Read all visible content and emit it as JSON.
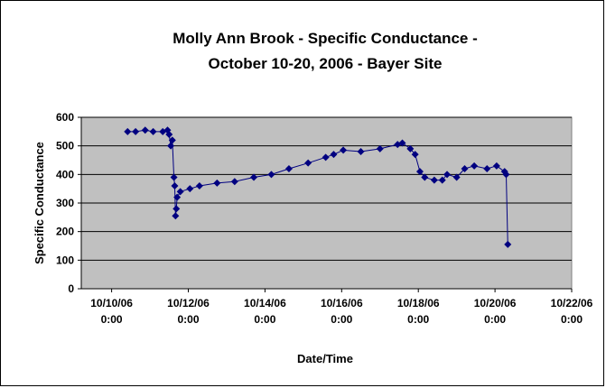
{
  "chart_data": {
    "type": "line",
    "title": [
      "Molly Ann Brook - Specific Conductance -",
      "October 10-20, 2006 - Bayer Site"
    ],
    "x_label": "Date/Time",
    "y_label": "Specific Conductance",
    "x": [
      "2006-10-10 10:00",
      "2006-10-10 15:00",
      "2006-10-10 21:00",
      "2006-10-11 02:00",
      "2006-10-11 08:00",
      "2006-10-11 11:00",
      "2006-10-11 12:00",
      "2006-10-11 13:00",
      "2006-10-11 14:00",
      "2006-10-11 15:00",
      "2006-10-11 15:30",
      "2006-10-11 16:00",
      "2006-10-11 16:30",
      "2006-10-11 17:00",
      "2006-10-11 19:00",
      "2006-10-12 01:00",
      "2006-10-12 07:00",
      "2006-10-12 18:00",
      "2006-10-13 05:00",
      "2006-10-13 17:00",
      "2006-10-14 04:00",
      "2006-10-14 15:00",
      "2006-10-15 03:00",
      "2006-10-15 14:00",
      "2006-10-15 19:00",
      "2006-10-16 01:00",
      "2006-10-16 12:00",
      "2006-10-17 00:00",
      "2006-10-17 11:00",
      "2006-10-17 14:00",
      "2006-10-17 19:00",
      "2006-10-17 22:00",
      "2006-10-18 01:00",
      "2006-10-18 04:00",
      "2006-10-18 10:00",
      "2006-10-18 15:00",
      "2006-10-18 18:00",
      "2006-10-19 00:00",
      "2006-10-19 05:00",
      "2006-10-19 11:00",
      "2006-10-19 19:00",
      "2006-10-20 01:00",
      "2006-10-20 06:00",
      "2006-10-20 07:00",
      "2006-10-20 08:00"
    ],
    "series": [
      {
        "name": "Specific Conductance",
        "color": "#000080",
        "values": [
          550,
          550,
          555,
          550,
          550,
          555,
          540,
          500,
          520,
          390,
          360,
          255,
          280,
          320,
          340,
          350,
          360,
          370,
          375,
          390,
          400,
          420,
          440,
          460,
          470,
          485,
          480,
          490,
          505,
          510,
          490,
          470,
          410,
          390,
          380,
          380,
          400,
          390,
          420,
          430,
          420,
          430,
          410,
          400,
          155
        ]
      }
    ],
    "xlim": [
      "2006-10-09 05:00",
      "2006-10-22 00:00"
    ],
    "xticks": [
      {
        "value": "2006-10-10 00:00",
        "label": "10/10/06 0:00"
      },
      {
        "value": "2006-10-12 00:00",
        "label": "10/12/06 0:00"
      },
      {
        "value": "2006-10-14 00:00",
        "label": "10/14/06 0:00"
      },
      {
        "value": "2006-10-16 00:00",
        "label": "10/16/06 0:00"
      },
      {
        "value": "2006-10-18 00:00",
        "label": "10/18/06 0:00"
      },
      {
        "value": "2006-10-20 00:00",
        "label": "10/20/06 0:00"
      },
      {
        "value": "2006-10-22 00:00",
        "label": "10/22/06 0:00"
      }
    ],
    "ylim": [
      0,
      600
    ],
    "yticks": [
      0,
      100,
      200,
      300,
      400,
      500,
      600
    ],
    "grid": true,
    "plot_background": "#c0c0c0"
  }
}
